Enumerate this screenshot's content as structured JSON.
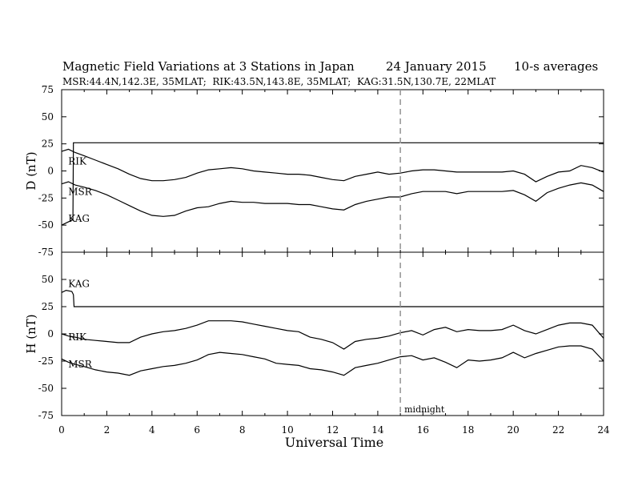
{
  "header": {
    "title": "Magnetic Field Variations at 3 Stations in Japan",
    "date": "24 January 2015",
    "averaging": "10-s averages",
    "stations_line": "MSR:44.4N,142.3E, 35MLAT;  RIK:43.5N,143.8E, 35MLAT;  KAG:31.5N,130.7E, 22MLAT"
  },
  "chart_data": {
    "type": "line",
    "xlabel": "Universal Time",
    "xlim": [
      0,
      24
    ],
    "x_ticks": [
      "0",
      "2",
      "4",
      "6",
      "8",
      "10",
      "12",
      "14",
      "16",
      "18",
      "20",
      "22",
      "24"
    ],
    "grid": false,
    "marker": {
      "x": 15,
      "label": "midnight",
      "color": "#999999"
    },
    "panels": [
      {
        "id": "D",
        "ylabel": "D (nT)",
        "ylim": [
          -75,
          75
        ],
        "y_ticks": [
          "75",
          "50",
          "25",
          "0",
          "-25",
          "-50",
          "-75"
        ],
        "series": [
          {
            "name": "RIK",
            "label_at": [
              0.15,
              6
            ],
            "x": [
              0,
              0.3,
              0.6,
              1,
              1.5,
              2,
              2.5,
              3,
              3.5,
              4,
              4.5,
              5,
              5.5,
              6,
              6.5,
              7,
              7.5,
              8,
              8.5,
              9,
              9.5,
              10,
              10.5,
              11,
              11.5,
              12,
              12.5,
              13,
              13.5,
              14,
              14.5,
              15,
              15.5,
              16,
              16.5,
              17,
              17.5,
              18,
              18.5,
              19,
              19.5,
              20,
              20.5,
              21,
              21.5,
              22,
              22.5,
              23,
              23.5,
              24
            ],
            "values": [
              18,
              20,
              17,
              14,
              10,
              6,
              2,
              -3,
              -7,
              -9,
              -9,
              -8,
              -6,
              -2,
              1,
              2,
              3,
              2,
              0,
              -1,
              -2,
              -3,
              -3,
              -4,
              -6,
              -8,
              -9,
              -5,
              -3,
              -1,
              -3,
              -2,
              0,
              1,
              1,
              0,
              -1,
              -1,
              -1,
              -1,
              -1,
              0,
              -3,
              -10,
              -5,
              -1,
              0,
              5,
              3,
              -1
            ]
          },
          {
            "name": "MSR",
            "label_at": [
              0.15,
              -22
            ],
            "x": [
              0,
              0.3,
              0.6,
              1,
              1.5,
              2,
              2.5,
              3,
              3.5,
              4,
              4.5,
              5,
              5.5,
              6,
              6.5,
              7,
              7.5,
              8,
              8.5,
              9,
              9.5,
              10,
              10.5,
              11,
              11.5,
              12,
              12.5,
              13,
              13.5,
              14,
              14.5,
              15,
              15.5,
              16,
              16.5,
              17,
              17.5,
              18,
              18.5,
              19,
              19.5,
              20,
              20.5,
              21,
              21.5,
              22,
              22.5,
              23,
              23.5,
              24
            ],
            "values": [
              -12,
              -10,
              -13,
              -15,
              -18,
              -22,
              -27,
              -32,
              -37,
              -41,
              -42,
              -41,
              -37,
              -34,
              -33,
              -30,
              -28,
              -29,
              -29,
              -30,
              -30,
              -30,
              -31,
              -31,
              -33,
              -35,
              -36,
              -31,
              -28,
              -26,
              -24,
              -24,
              -21,
              -19,
              -19,
              -19,
              -21,
              -19,
              -19,
              -19,
              -19,
              -18,
              -22,
              -28,
              -20,
              -16,
              -13,
              -11,
              -13,
              -19
            ]
          },
          {
            "name": "KAG",
            "label_at": [
              0.15,
              -47
            ],
            "x": [
              0,
              0.3,
              0.5,
              0.52,
              1,
              4,
              8,
              12,
              16,
              20,
              24
            ],
            "values": [
              -50,
              -47,
              -45,
              26,
              26,
              26,
              26,
              26,
              26,
              26,
              26
            ]
          }
        ]
      },
      {
        "id": "H",
        "ylabel": "H (nT)",
        "ylim": [
          -75,
          75
        ],
        "y_ticks": [
          "50",
          "25",
          "0",
          "-25",
          "-50",
          "-75"
        ],
        "series": [
          {
            "name": "KAG",
            "label_at": [
              0.15,
              43
            ],
            "x": [
              0,
              0.2,
              0.45,
              0.52,
              0.55,
              1,
              4,
              8,
              12,
              16,
              20,
              24
            ],
            "values": [
              38,
              40,
              39,
              36,
              25,
              25,
              25,
              25,
              25,
              25,
              25,
              25
            ]
          },
          {
            "name": "RIK",
            "label_at": [
              0.15,
              -6
            ],
            "x": [
              0,
              0.3,
              0.6,
              1,
              1.5,
              2,
              2.5,
              3,
              3.5,
              4,
              4.5,
              5,
              5.5,
              6,
              6.5,
              7,
              7.5,
              8,
              8.5,
              9,
              9.5,
              10,
              10.5,
              11,
              11.5,
              12,
              12.5,
              13,
              13.5,
              14,
              14.5,
              15,
              15.5,
              16,
              16.5,
              17,
              17.5,
              18,
              18.5,
              19,
              19.5,
              20,
              20.5,
              21,
              21.5,
              22,
              22.5,
              23,
              23.5,
              24
            ],
            "values": [
              0,
              -2,
              -3,
              -5,
              -6,
              -7,
              -8,
              -8,
              -3,
              0,
              2,
              3,
              5,
              8,
              12,
              12,
              12,
              11,
              9,
              7,
              5,
              3,
              2,
              -3,
              -5,
              -8,
              -14,
              -7,
              -5,
              -4,
              -2,
              1,
              3,
              -1,
              4,
              6,
              2,
              4,
              3,
              3,
              4,
              8,
              3,
              0,
              4,
              8,
              10,
              10,
              8,
              -4
            ]
          },
          {
            "name": "MSR",
            "label_at": [
              0.15,
              -31
            ],
            "x": [
              0,
              0.3,
              0.6,
              1,
              1.5,
              2,
              2.5,
              3,
              3.5,
              4,
              4.5,
              5,
              5.5,
              6,
              6.5,
              7,
              7.5,
              8,
              8.5,
              9,
              9.5,
              10,
              10.5,
              11,
              11.5,
              12,
              12.5,
              13,
              13.5,
              14,
              14.5,
              15,
              15.5,
              16,
              16.5,
              17,
              17.5,
              18,
              18.5,
              19,
              19.5,
              20,
              20.5,
              21,
              21.5,
              22,
              22.5,
              23,
              23.5,
              24
            ],
            "values": [
              -23,
              -26,
              -28,
              -30,
              -33,
              -35,
              -36,
              -38,
              -34,
              -32,
              -30,
              -29,
              -27,
              -24,
              -19,
              -17,
              -18,
              -19,
              -21,
              -23,
              -27,
              -28,
              -29,
              -32,
              -33,
              -35,
              -38,
              -31,
              -29,
              -27,
              -24,
              -21,
              -20,
              -24,
              -22,
              -26,
              -31,
              -24,
              -25,
              -24,
              -22,
              -17,
              -22,
              -18,
              -15,
              -12,
              -11,
              -11,
              -14,
              -25
            ]
          }
        ]
      }
    ]
  }
}
